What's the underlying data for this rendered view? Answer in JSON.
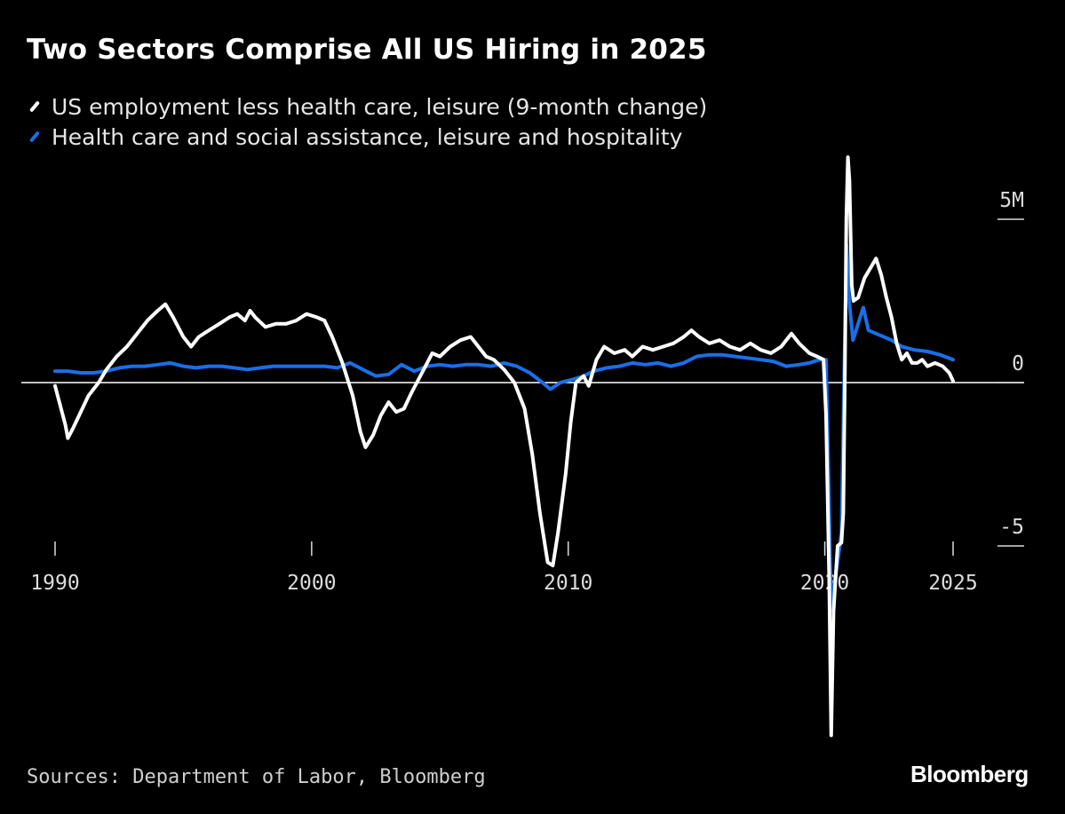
{
  "header": {
    "title": "Two Sectors Comprise All US Hiring in 2025"
  },
  "legend": [
    {
      "label": "US employment less health care, leisure (9-month change)",
      "color": "#ffffff"
    },
    {
      "label": "Health care and social assistance, leisure and hospitality",
      "color": "#1a6fe8"
    }
  ],
  "footer": {
    "source": "Sources: Department of Labor, Bloomberg",
    "logo": "Bloomberg"
  },
  "chart_data": {
    "type": "line",
    "title": "Two Sectors Comprise All US Hiring in 2025",
    "xlabel": "",
    "ylabel": "",
    "xlim": [
      1990,
      2025
    ],
    "ylim": [
      -10.8,
      7
    ],
    "x_ticks": [
      {
        "value": 1990,
        "label": "1990"
      },
      {
        "value": 2000,
        "label": "2000"
      },
      {
        "value": 2010,
        "label": "2010"
      },
      {
        "value": 2020,
        "label": "2020"
      },
      {
        "value": 2025,
        "label": "2025"
      }
    ],
    "y_ticks": [
      {
        "value": 5,
        "label": "5M"
      },
      {
        "value": 0,
        "label": "0"
      },
      {
        "value": -5,
        "label": "-5"
      }
    ],
    "zero_line": true,
    "grid": false,
    "legend_position": "top-left",
    "series": [
      {
        "name": "US employment less health care, leisure (9-month change)",
        "color": "#ffffff",
        "points": [
          [
            1990.0,
            -0.1
          ],
          [
            1990.2,
            -0.7
          ],
          [
            1990.4,
            -1.3
          ],
          [
            1990.5,
            -1.7
          ],
          [
            1990.7,
            -1.4
          ],
          [
            1991.0,
            -0.9
          ],
          [
            1991.3,
            -0.4
          ],
          [
            1991.7,
            0.0
          ],
          [
            1992.0,
            0.4
          ],
          [
            1992.4,
            0.8
          ],
          [
            1992.8,
            1.1
          ],
          [
            1993.2,
            1.5
          ],
          [
            1993.6,
            1.9
          ],
          [
            1994.0,
            2.2
          ],
          [
            1994.3,
            2.4
          ],
          [
            1994.6,
            2.0
          ],
          [
            1995.0,
            1.4
          ],
          [
            1995.3,
            1.1
          ],
          [
            1995.6,
            1.4
          ],
          [
            1996.0,
            1.6
          ],
          [
            1996.4,
            1.8
          ],
          [
            1996.8,
            2.0
          ],
          [
            1997.1,
            2.1
          ],
          [
            1997.4,
            1.9
          ],
          [
            1997.6,
            2.2
          ],
          [
            1997.8,
            2.0
          ],
          [
            1998.2,
            1.7
          ],
          [
            1998.6,
            1.8
          ],
          [
            1999.0,
            1.8
          ],
          [
            1999.4,
            1.9
          ],
          [
            1999.8,
            2.1
          ],
          [
            2000.2,
            2.0
          ],
          [
            2000.5,
            1.9
          ],
          [
            2000.8,
            1.4
          ],
          [
            2001.2,
            0.6
          ],
          [
            2001.6,
            -0.4
          ],
          [
            2001.9,
            -1.5
          ],
          [
            2002.1,
            -1.98
          ],
          [
            2002.4,
            -1.6
          ],
          [
            2002.7,
            -1.0
          ],
          [
            2003.0,
            -0.6
          ],
          [
            2003.3,
            -0.9
          ],
          [
            2003.6,
            -0.8
          ],
          [
            2003.9,
            -0.3
          ],
          [
            2004.3,
            0.3
          ],
          [
            2004.7,
            0.9
          ],
          [
            2005.0,
            0.8
          ],
          [
            2005.4,
            1.1
          ],
          [
            2005.8,
            1.3
          ],
          [
            2006.2,
            1.4
          ],
          [
            2006.5,
            1.1
          ],
          [
            2006.8,
            0.8
          ],
          [
            2007.1,
            0.7
          ],
          [
            2007.5,
            0.4
          ],
          [
            2007.9,
            0.0
          ],
          [
            2008.3,
            -0.8
          ],
          [
            2008.6,
            -2.2
          ],
          [
            2008.9,
            -4.0
          ],
          [
            2009.2,
            -5.5
          ],
          [
            2009.4,
            -5.6
          ],
          [
            2009.6,
            -4.6
          ],
          [
            2009.9,
            -2.8
          ],
          [
            2010.1,
            -1.2
          ],
          [
            2010.3,
            0.0
          ],
          [
            2010.6,
            0.2
          ],
          [
            2010.8,
            -0.1
          ],
          [
            2011.1,
            0.7
          ],
          [
            2011.4,
            1.1
          ],
          [
            2011.8,
            0.9
          ],
          [
            2012.2,
            1.0
          ],
          [
            2012.5,
            0.8
          ],
          [
            2012.9,
            1.1
          ],
          [
            2013.3,
            1.0
          ],
          [
            2013.7,
            1.1
          ],
          [
            2014.1,
            1.2
          ],
          [
            2014.5,
            1.4
          ],
          [
            2014.8,
            1.6
          ],
          [
            2015.1,
            1.4
          ],
          [
            2015.5,
            1.2
          ],
          [
            2015.9,
            1.3
          ],
          [
            2016.3,
            1.1
          ],
          [
            2016.7,
            1.0
          ],
          [
            2017.1,
            1.2
          ],
          [
            2017.5,
            1.0
          ],
          [
            2017.9,
            0.9
          ],
          [
            2018.3,
            1.1
          ],
          [
            2018.7,
            1.5
          ],
          [
            2019.0,
            1.2
          ],
          [
            2019.4,
            0.9
          ],
          [
            2019.7,
            0.8
          ],
          [
            2019.95,
            0.7
          ],
          [
            2020.05,
            -1.0
          ],
          [
            2020.17,
            -6.0
          ],
          [
            2020.25,
            -10.8
          ],
          [
            2020.34,
            -7.0
          ],
          [
            2020.5,
            -5.0
          ],
          [
            2020.65,
            -4.9
          ],
          [
            2020.72,
            -4.0
          ],
          [
            2020.78,
            0.0
          ],
          [
            2020.84,
            5.0
          ],
          [
            2020.9,
            6.9
          ],
          [
            2020.96,
            6.2
          ],
          [
            2021.05,
            3.0
          ],
          [
            2021.12,
            2.5
          ],
          [
            2021.3,
            2.6
          ],
          [
            2021.55,
            3.2
          ],
          [
            2021.85,
            3.6
          ],
          [
            2022.0,
            3.8
          ],
          [
            2022.2,
            3.3
          ],
          [
            2022.4,
            2.6
          ],
          [
            2022.6,
            2.0
          ],
          [
            2022.8,
            1.2
          ],
          [
            2023.0,
            0.7
          ],
          [
            2023.2,
            0.9
          ],
          [
            2023.4,
            0.6
          ],
          [
            2023.6,
            0.6
          ],
          [
            2023.8,
            0.7
          ],
          [
            2024.0,
            0.5
          ],
          [
            2024.3,
            0.6
          ],
          [
            2024.6,
            0.5
          ],
          [
            2024.85,
            0.3
          ],
          [
            2025.0,
            0.05
          ]
        ]
      },
      {
        "name": "Health care and social assistance, leisure and hospitality",
        "color": "#1a6fe8",
        "points": [
          [
            1990.0,
            0.35
          ],
          [
            1990.5,
            0.35
          ],
          [
            1991.0,
            0.3
          ],
          [
            1991.5,
            0.3
          ],
          [
            1992.0,
            0.35
          ],
          [
            1992.5,
            0.45
          ],
          [
            1993.0,
            0.5
          ],
          [
            1993.5,
            0.5
          ],
          [
            1994.0,
            0.55
          ],
          [
            1994.5,
            0.6
          ],
          [
            1995.0,
            0.5
          ],
          [
            1995.5,
            0.45
          ],
          [
            1996.0,
            0.5
          ],
          [
            1996.5,
            0.5
          ],
          [
            1997.0,
            0.45
          ],
          [
            1997.5,
            0.4
          ],
          [
            1998.0,
            0.45
          ],
          [
            1998.5,
            0.5
          ],
          [
            1999.0,
            0.5
          ],
          [
            1999.5,
            0.5
          ],
          [
            2000.0,
            0.5
          ],
          [
            2000.5,
            0.5
          ],
          [
            2001.0,
            0.45
          ],
          [
            2001.5,
            0.6
          ],
          [
            2002.0,
            0.4
          ],
          [
            2002.5,
            0.2
          ],
          [
            2003.0,
            0.25
          ],
          [
            2003.5,
            0.55
          ],
          [
            2004.0,
            0.35
          ],
          [
            2004.5,
            0.5
          ],
          [
            2005.0,
            0.55
          ],
          [
            2005.5,
            0.5
          ],
          [
            2006.0,
            0.55
          ],
          [
            2006.5,
            0.55
          ],
          [
            2007.0,
            0.5
          ],
          [
            2007.5,
            0.6
          ],
          [
            2008.0,
            0.5
          ],
          [
            2008.5,
            0.3
          ],
          [
            2009.0,
            0.0
          ],
          [
            2009.3,
            -0.2
          ],
          [
            2009.7,
            0.0
          ],
          [
            2010.2,
            0.1
          ],
          [
            2010.6,
            0.2
          ],
          [
            2011.0,
            0.35
          ],
          [
            2011.5,
            0.45
          ],
          [
            2012.0,
            0.5
          ],
          [
            2012.5,
            0.6
          ],
          [
            2013.0,
            0.55
          ],
          [
            2013.5,
            0.6
          ],
          [
            2014.0,
            0.5
          ],
          [
            2014.5,
            0.6
          ],
          [
            2015.0,
            0.8
          ],
          [
            2015.5,
            0.85
          ],
          [
            2016.0,
            0.85
          ],
          [
            2016.5,
            0.8
          ],
          [
            2017.0,
            0.75
          ],
          [
            2017.5,
            0.7
          ],
          [
            2018.0,
            0.65
          ],
          [
            2018.5,
            0.5
          ],
          [
            2019.0,
            0.55
          ],
          [
            2019.4,
            0.6
          ],
          [
            2019.8,
            0.7
          ],
          [
            2020.05,
            0.7
          ],
          [
            2020.15,
            -3.0
          ],
          [
            2020.25,
            -7.0
          ],
          [
            2020.4,
            -6.0
          ],
          [
            2020.55,
            -5.2
          ],
          [
            2020.65,
            -4.6
          ],
          [
            2020.75,
            0.0
          ],
          [
            2020.85,
            4.2
          ],
          [
            2020.95,
            2.5
          ],
          [
            2021.1,
            1.3
          ],
          [
            2021.3,
            1.8
          ],
          [
            2021.5,
            2.3
          ],
          [
            2021.7,
            1.6
          ],
          [
            2022.0,
            1.5
          ],
          [
            2022.3,
            1.4
          ],
          [
            2022.6,
            1.3
          ],
          [
            2023.0,
            1.1
          ],
          [
            2023.5,
            1.0
          ],
          [
            2024.0,
            0.95
          ],
          [
            2024.5,
            0.85
          ],
          [
            2025.0,
            0.7
          ]
        ]
      }
    ]
  }
}
